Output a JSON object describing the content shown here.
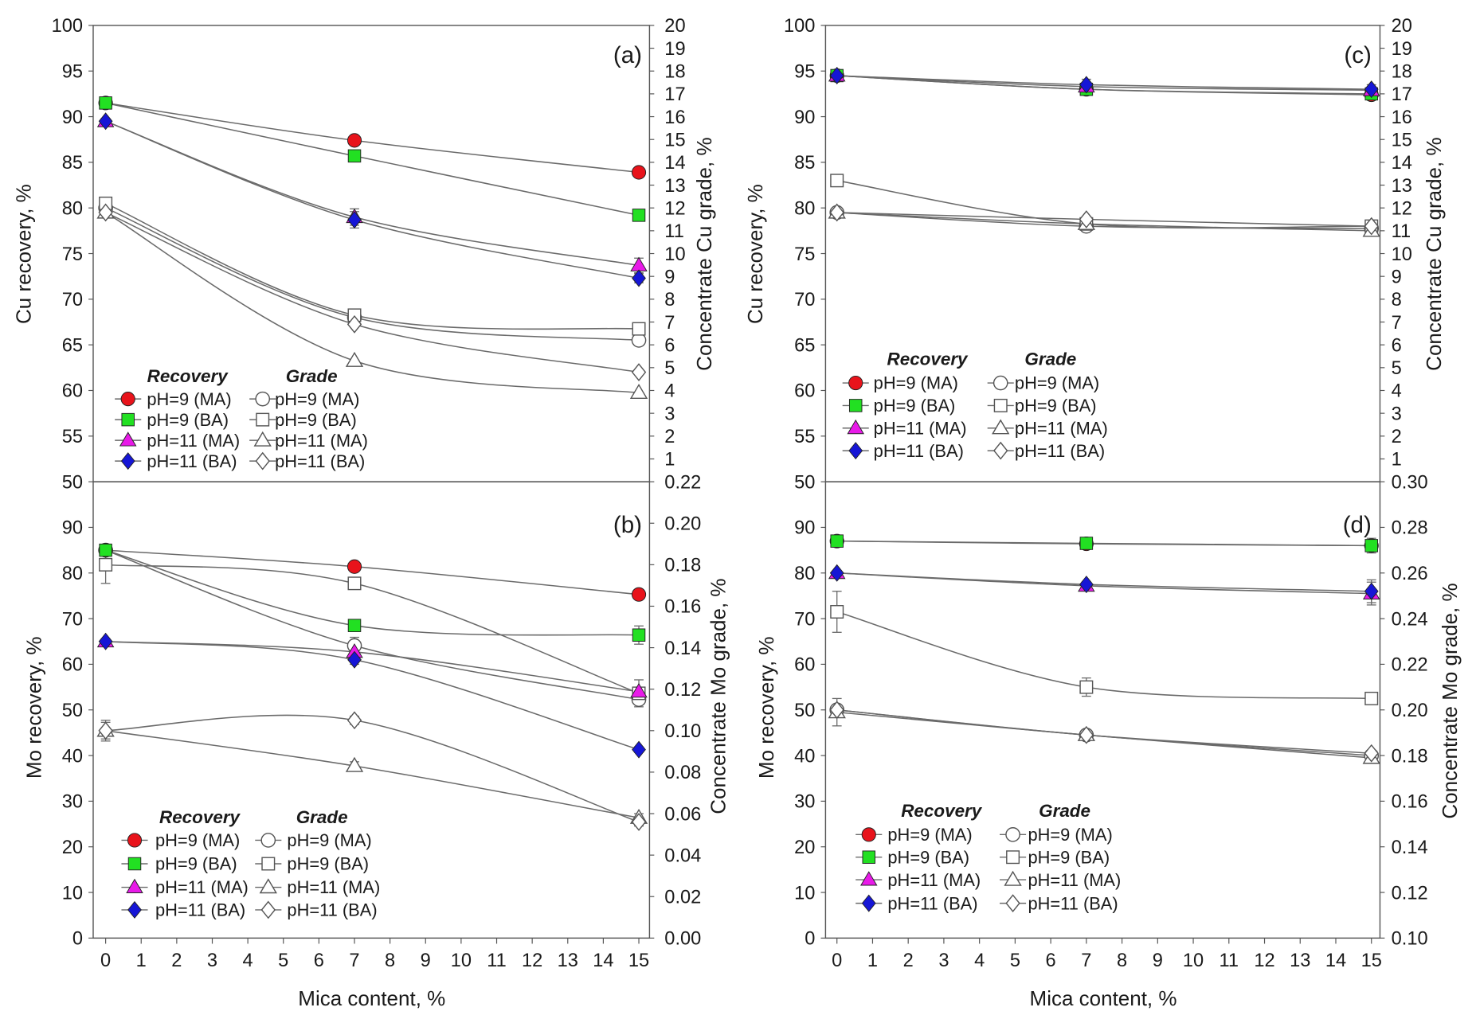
{
  "style": {
    "axis_color": "#555555",
    "line_color": "#6a6a6a",
    "open_marker_fill": "#ffffff",
    "open_marker_stroke": "#555555"
  },
  "chart_data": [
    {
      "type": "line",
      "panel_label": "(a)",
      "ylabel": "Cu recovery, %",
      "y2label": "Concentrate Cu grade, %",
      "xlim": [
        -0.35,
        15.3
      ],
      "ylim": [
        50,
        100
      ],
      "y2lim": [
        0,
        20
      ],
      "y_tick_labels": [
        "50",
        "55",
        "60",
        "65",
        "70",
        "75",
        "80",
        "85",
        "90",
        "95",
        "100"
      ],
      "y2_tick_labels": [
        "1",
        "2",
        "3",
        "4",
        "5",
        "6",
        "7",
        "8",
        "9",
        "10",
        "11",
        "12",
        "13",
        "14",
        "15",
        "16",
        "17",
        "18",
        "19",
        "20"
      ],
      "legend": {
        "recovery_title": "Recovery",
        "grade_title": "Grade"
      },
      "x": [
        0,
        7,
        15
      ],
      "recovery": [
        {
          "name": "pH=9 (MA)",
          "marker": "circle",
          "color": "#e8131b",
          "values": [
            91.5,
            87.4,
            83.9
          ]
        },
        {
          "name": "pH=9 (BA)",
          "marker": "square",
          "color": "#22e022",
          "values": [
            91.5,
            85.7,
            79.2
          ]
        },
        {
          "name": "pH=11 (MA)",
          "marker": "triangle",
          "color": "#e81ae8",
          "values": [
            89.5,
            79.0,
            73.7
          ],
          "err": [
            0.3,
            0.9,
            0.8
          ]
        },
        {
          "name": "pH=11 (BA)",
          "marker": "diamond",
          "color": "#1616d6",
          "values": [
            89.5,
            78.7,
            72.3
          ],
          "err": [
            0.3,
            0.9,
            0.5
          ]
        }
      ],
      "grade": [
        {
          "name": "pH=9 (MA)",
          "marker": "circle",
          "values": [
            12.0,
            7.2,
            6.2
          ]
        },
        {
          "name": "pH=9 (BA)",
          "marker": "square",
          "values": [
            12.2,
            7.3,
            6.7
          ]
        },
        {
          "name": "pH=11 (MA)",
          "marker": "triangle",
          "values": [
            11.8,
            5.3,
            3.9
          ]
        },
        {
          "name": "pH=11 (BA)",
          "marker": "diamond",
          "values": [
            11.8,
            6.9,
            4.8
          ]
        }
      ]
    },
    {
      "type": "line",
      "panel_label": "(b)",
      "xlabel": "Mica content, %",
      "ylabel": "Mo recovery, %",
      "y2label": "Concentrate Mo grade, %",
      "xlim": [
        -0.35,
        15.3
      ],
      "ylim": [
        0,
        100
      ],
      "y2lim": [
        0,
        0.22
      ],
      "x_tick_labels": [
        "0",
        "1",
        "2",
        "3",
        "4",
        "5",
        "6",
        "7",
        "8",
        "9",
        "10",
        "11",
        "12",
        "13",
        "14",
        "15"
      ],
      "y_tick_labels": [
        "0",
        "10",
        "20",
        "30",
        "40",
        "50",
        "60",
        "70",
        "80",
        "90"
      ],
      "y2_tick_labels": [
        "0.00",
        "0.02",
        "0.04",
        "0.06",
        "0.08",
        "0.10",
        "0.12",
        "0.14",
        "0.16",
        "0.18",
        "0.20",
        "0.22"
      ],
      "legend": {
        "recovery_title": "Recovery",
        "grade_title": "Grade"
      },
      "x": [
        0,
        7,
        15
      ],
      "recovery": [
        {
          "name": "pH=9 (MA)",
          "marker": "circle",
          "color": "#e8131b",
          "values": [
            85.0,
            81.4,
            75.3
          ],
          "err": [
            0,
            0,
            0.6
          ]
        },
        {
          "name": "pH=9 (BA)",
          "marker": "square",
          "color": "#22e022",
          "values": [
            85.0,
            68.5,
            66.4
          ],
          "err": [
            0.8,
            1.0,
            2.0
          ]
        },
        {
          "name": "pH=11 (MA)",
          "marker": "triangle",
          "color": "#e81ae8",
          "values": [
            65.0,
            62.7,
            54.0
          ],
          "err": [
            0.6,
            1.2,
            0
          ]
        },
        {
          "name": "pH=11 (BA)",
          "marker": "diamond",
          "color": "#1616d6",
          "values": [
            65.0,
            61.0,
            41.3
          ],
          "err": [
            0.5,
            1.0,
            0.6
          ]
        }
      ],
      "grade": [
        {
          "name": "pH=9 (MA)",
          "marker": "circle",
          "values": [
            0.187,
            0.141,
            0.115
          ],
          "err": [
            0,
            0.004,
            0
          ]
        },
        {
          "name": "pH=9 (BA)",
          "marker": "square",
          "values": [
            0.18,
            0.171,
            0.118
          ],
          "err": [
            0.009,
            0.002,
            0.0065
          ]
        },
        {
          "name": "pH=11 (MA)",
          "marker": "triangle",
          "values": [
            0.1,
            0.083,
            0.058
          ],
          "err": [
            0.005,
            0.002,
            0.002
          ]
        },
        {
          "name": "pH=11 (BA)",
          "marker": "diamond",
          "values": [
            0.1,
            0.105,
            0.056
          ],
          "err": [
            0.004,
            0.002,
            0.002
          ]
        }
      ]
    },
    {
      "type": "line",
      "panel_label": "(c)",
      "ylabel": "Cu recovery, %",
      "y2label": "Concentrate Cu grade, %",
      "xlim": [
        -0.32,
        15.24
      ],
      "ylim": [
        50,
        100
      ],
      "y2lim": [
        0,
        20
      ],
      "y_tick_labels": [
        "50",
        "55",
        "60",
        "65",
        "70",
        "75",
        "80",
        "85",
        "90",
        "95",
        "100"
      ],
      "y2_tick_labels": [
        "1",
        "2",
        "3",
        "4",
        "5",
        "6",
        "7",
        "8",
        "9",
        "10",
        "11",
        "12",
        "13",
        "14",
        "15",
        "16",
        "17",
        "18",
        "19",
        "20"
      ],
      "legend": {
        "recovery_title": "Recovery",
        "grade_title": "Grade"
      },
      "x": [
        0,
        7,
        15
      ],
      "recovery": [
        {
          "name": "pH=9 (MA)",
          "marker": "circle",
          "color": "#e8131b",
          "values": [
            94.5,
            93.0,
            92.4
          ],
          "err": [
            0.5,
            0.5,
            0.5
          ]
        },
        {
          "name": "pH=9 (BA)",
          "marker": "square",
          "color": "#22e022",
          "values": [
            94.5,
            93.0,
            92.5
          ]
        },
        {
          "name": "pH=11 (MA)",
          "marker": "triangle",
          "color": "#e81ae8",
          "values": [
            94.5,
            93.3,
            92.9
          ]
        },
        {
          "name": "pH=11 (BA)",
          "marker": "diamond",
          "color": "#1616d6",
          "values": [
            94.5,
            93.5,
            93.0
          ],
          "err": [
            0.5,
            0.6,
            0.5
          ]
        }
      ],
      "grade": [
        {
          "name": "pH=9 (MA)",
          "marker": "circle",
          "values": [
            11.8,
            11.2,
            11.1
          ]
        },
        {
          "name": "pH=9 (BA)",
          "marker": "square",
          "values": [
            13.2,
            11.3,
            11.2
          ],
          "err": [
            0.25,
            0.1,
            0.1
          ]
        },
        {
          "name": "pH=11 (MA)",
          "marker": "triangle",
          "values": [
            11.8,
            11.3,
            11.0
          ]
        },
        {
          "name": "pH=11 (BA)",
          "marker": "diamond",
          "values": [
            11.8,
            11.5,
            11.2
          ]
        }
      ]
    },
    {
      "type": "line",
      "panel_label": "(d)",
      "xlabel": "Mica content, %",
      "ylabel": "Mo recovery, %",
      "y2label": "Concentrate Mo grade, %",
      "xlim": [
        -0.32,
        15.24
      ],
      "ylim": [
        0,
        100
      ],
      "y2lim": [
        0.1,
        0.3
      ],
      "x_tick_labels": [
        "0",
        "1",
        "2",
        "3",
        "4",
        "5",
        "6",
        "7",
        "8",
        "9",
        "10",
        "11",
        "12",
        "13",
        "14",
        "15"
      ],
      "y_tick_labels": [
        "0",
        "10",
        "20",
        "30",
        "40",
        "50",
        "60",
        "70",
        "80",
        "90"
      ],
      "y2_tick_labels": [
        "0.10",
        "0.12",
        "0.14",
        "0.16",
        "0.18",
        "0.20",
        "0.22",
        "0.24",
        "0.26",
        "0.28",
        "0.30"
      ],
      "legend": {
        "recovery_title": "Recovery",
        "grade_title": "Grade"
      },
      "x": [
        0,
        7,
        15
      ],
      "recovery": [
        {
          "name": "pH=9 (MA)",
          "marker": "circle",
          "color": "#e8131b",
          "values": [
            87.0,
            86.4,
            86.0
          ]
        },
        {
          "name": "pH=9 (BA)",
          "marker": "square",
          "color": "#22e022",
          "values": [
            87.0,
            86.5,
            86.0
          ],
          "err": [
            0.5,
            0.5,
            1.6
          ]
        },
        {
          "name": "pH=11 (MA)",
          "marker": "triangle",
          "color": "#e81ae8",
          "values": [
            80.0,
            77.2,
            75.5
          ],
          "err": [
            0.5,
            0.8,
            2.5
          ]
        },
        {
          "name": "pH=11 (BA)",
          "marker": "diamond",
          "color": "#1616d6",
          "values": [
            80.0,
            77.5,
            76.0
          ],
          "err": [
            0.5,
            0.6,
            2.5
          ]
        }
      ],
      "grade": [
        {
          "name": "pH=9 (MA)",
          "marker": "circle",
          "values": [
            0.2,
            0.189,
            0.18
          ]
        },
        {
          "name": "pH=9 (BA)",
          "marker": "square",
          "values": [
            0.243,
            0.21,
            0.205
          ],
          "err": [
            0.009,
            0.004,
            0.002
          ]
        },
        {
          "name": "pH=11 (MA)",
          "marker": "triangle",
          "values": [
            0.199,
            0.189,
            0.179
          ],
          "err": [
            0.006,
            0.002,
            0.002
          ]
        },
        {
          "name": "pH=11 (BA)",
          "marker": "diamond",
          "values": [
            0.2,
            0.189,
            0.181
          ]
        }
      ]
    }
  ]
}
